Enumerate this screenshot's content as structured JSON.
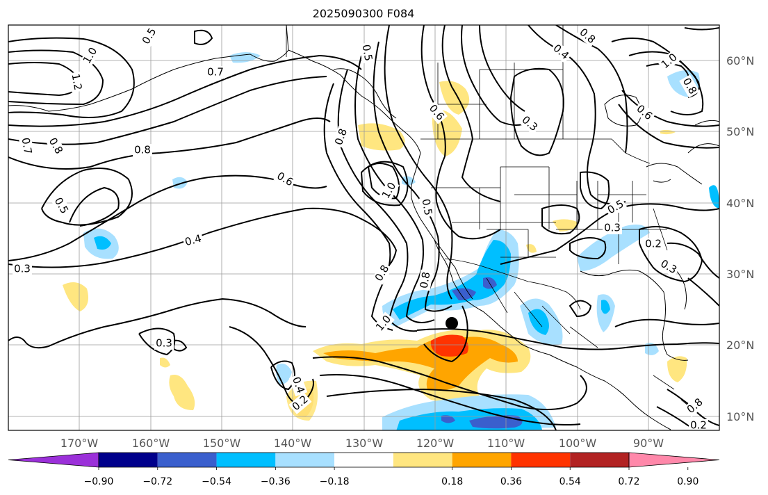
{
  "title": "2025090300 F084",
  "lat_labels": [
    "60°N",
    "50°N",
    "40°N",
    "30°N",
    "20°N",
    "10°N"
  ],
  "lon_labels": [
    "170°W",
    "160°W",
    "150°W",
    "140°W",
    "130°W",
    "120°W",
    "110°W",
    "100°W",
    "90°W"
  ],
  "colorbar": {
    "ticks": [
      "−0.90",
      "−0.72",
      "−0.54",
      "−0.36",
      "−0.18",
      "0.18",
      "0.36",
      "0.54",
      "0.72",
      "0.90"
    ],
    "colors": [
      "#9b30d9",
      "#00008b",
      "#3a5fcd",
      "#00bfff",
      "#a8e0ff",
      "#ffffff",
      "#ffe680",
      "#ffa500",
      "#ff3300",
      "#b22222",
      "#ff88aa"
    ]
  },
  "contour_labels": [
    "1.0",
    "1.2",
    "0.5",
    "0.7",
    "0.8",
    "0.7",
    "0.8",
    "0.5",
    "0.6",
    "0.4",
    "0.3",
    "0.8",
    "1.0",
    "0.8",
    "0.6",
    "0.4",
    "0.5",
    "0.3",
    "1.0",
    "0.8",
    "0.6",
    "0.8",
    "0.5",
    "1.0",
    "0.8",
    "0.5",
    "0.3",
    "0.2",
    "0.3",
    "0.4",
    "0.2",
    "0.3",
    "0.8",
    "0.2"
  ],
  "colors": {
    "grid": "#9a9a9a",
    "axis_label": "#555555",
    "contour": "#000000",
    "positive_fill_light": "#ffe680",
    "positive_fill_mid": "#ffa500",
    "positive_fill_strong": "#ff3300",
    "negative_fill_light": "#a8e0ff",
    "negative_fill_mid": "#00bfff",
    "negative_fill_strong": "#3a5fcd"
  }
}
